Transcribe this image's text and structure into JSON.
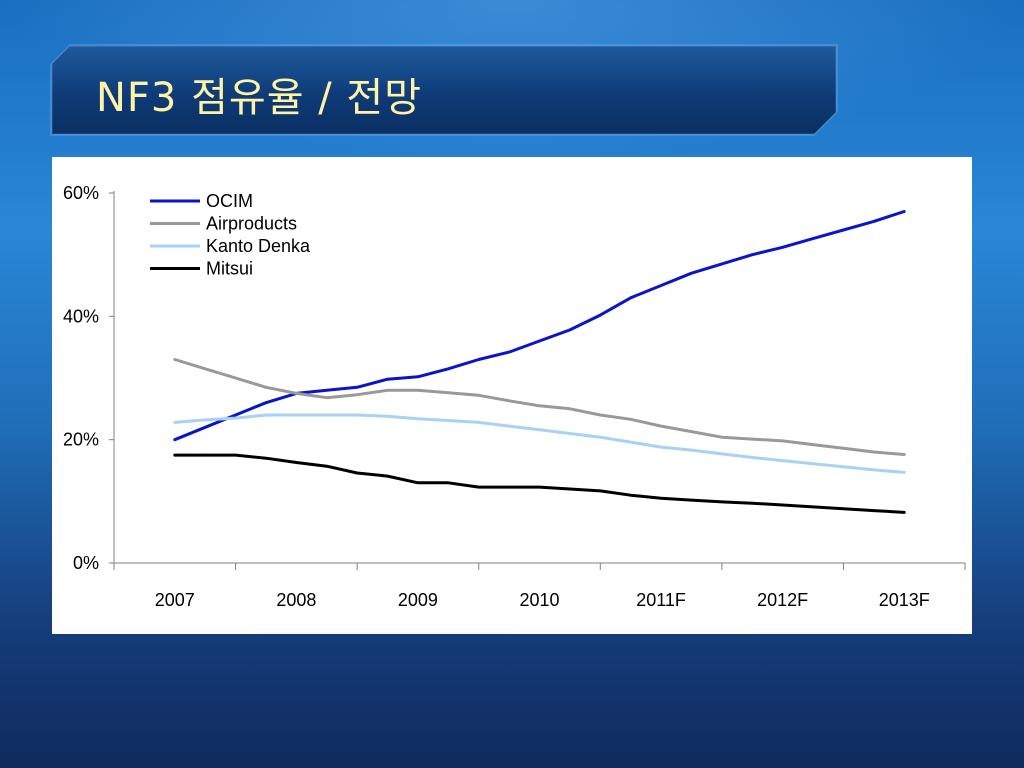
{
  "slide": {
    "title": "NF3 점유율 / 전망"
  },
  "chart_data": {
    "type": "line",
    "categories": [
      "2007",
      "2008",
      "2009",
      "2010",
      "2011F",
      "2012F",
      "2013F"
    ],
    "x": [
      0.5,
      0.75,
      1.0,
      1.25,
      1.5,
      1.75,
      2.0,
      2.25,
      2.5,
      2.75,
      3.0,
      3.25,
      3.5,
      3.75,
      4.0,
      4.25,
      4.5,
      4.75,
      5.0,
      5.25,
      5.5,
      5.75,
      6.0,
      6.25,
      6.5
    ],
    "ylim": [
      0,
      60
    ],
    "yticks": [
      "0%",
      "20%",
      "40%",
      "60%"
    ],
    "ytick_values": [
      0,
      20,
      40,
      60
    ],
    "xlabel": "",
    "ylabel": "",
    "title": "",
    "grid": false,
    "legend_position": "top-left",
    "series": [
      {
        "name": "OCIM",
        "color": "#0a14c8",
        "values": [
          20,
          22,
          24,
          26,
          27.5,
          28,
          28.5,
          29.8,
          30.2,
          31.5,
          33,
          34.2,
          36,
          37.8,
          40.2,
          43,
          45,
          47,
          48.5,
          50,
          51.2,
          52.6,
          54,
          55.4,
          57
        ]
      },
      {
        "name": "Airproducts",
        "color": "#999999",
        "values": [
          33,
          31.5,
          30,
          28.5,
          27.5,
          26.8,
          27.3,
          28,
          28,
          27.6,
          27.2,
          26.3,
          25.5,
          25,
          24,
          23.3,
          22.2,
          21.3,
          20.4,
          20.1,
          19.8,
          19.2,
          18.6,
          18,
          17.6
        ]
      },
      {
        "name": "Kanto Denka",
        "color": "#a8d2f5",
        "values": [
          22.8,
          23.2,
          23.5,
          24,
          24,
          24,
          24,
          23.8,
          23.4,
          23.1,
          22.8,
          22.2,
          21.6,
          21,
          20.4,
          19.6,
          18.8,
          18.3,
          17.7,
          17.1,
          16.6,
          16.1,
          15.6,
          15.1,
          14.7
        ]
      },
      {
        "name": "Mitsui",
        "color": "#000000",
        "values": [
          17.5,
          17.5,
          17.5,
          17,
          16.3,
          15.7,
          14.6,
          14.1,
          13,
          13,
          12.3,
          12.3,
          12.3,
          12,
          11.7,
          11,
          10.5,
          10.2,
          9.9,
          9.7,
          9.4,
          9.1,
          8.8,
          8.5,
          8.2
        ]
      }
    ]
  }
}
